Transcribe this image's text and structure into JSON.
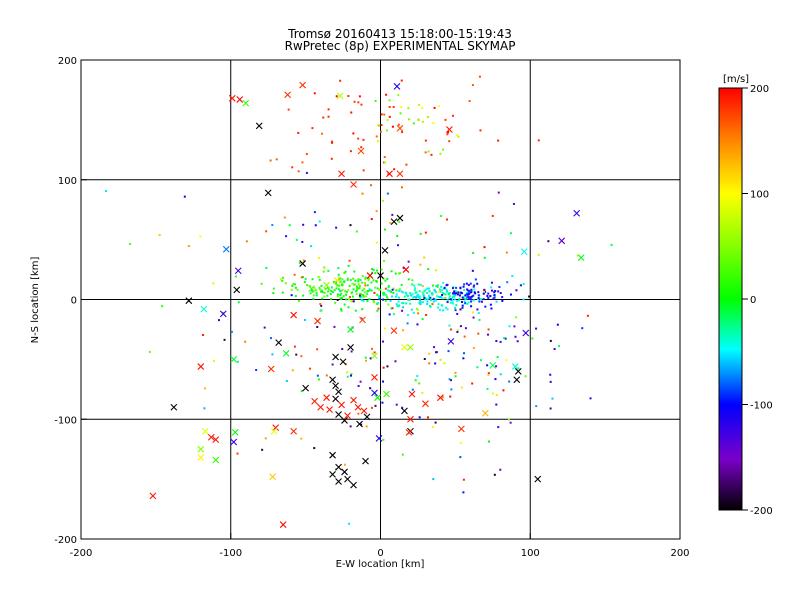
{
  "chart_data": {
    "type": "scatter",
    "title": "Tromsø 20160413 15:18:00-15:19:43",
    "subtitle": "RwPretec (8p) EXPERIMENTAL SKYMAP",
    "xlabel": "E-W location [km]",
    "ylabel": "N-S location [km]",
    "xlim": [
      -200,
      200
    ],
    "ylim": [
      -200,
      200
    ],
    "xticks": [
      "-200",
      "-100",
      "0",
      "100",
      "200"
    ],
    "yticks": [
      "-200",
      "-100",
      "0",
      "100",
      "200"
    ],
    "grid": true,
    "colorbar": {
      "label": "[m/s]",
      "range": [
        -200,
        200
      ],
      "ticks": [
        "-200",
        "-100",
        "0",
        "100",
        "200"
      ],
      "colors": [
        "#000000",
        "#7a00c8",
        "#0000ff",
        "#00ffff",
        "#00ff00",
        "#ffff00",
        "#ff8000",
        "#ff0000"
      ]
    },
    "crosses": [
      {
        "x": -99,
        "y": 168,
        "v": 190
      },
      {
        "x": -81,
        "y": 145,
        "v": -200
      },
      {
        "x": -52,
        "y": 179,
        "v": 180
      },
      {
        "x": -13,
        "y": 124,
        "v": 170
      },
      {
        "x": -26,
        "y": 105,
        "v": 190
      },
      {
        "x": 13,
        "y": 105,
        "v": 180
      },
      {
        "x": 6,
        "y": 105,
        "v": 200
      },
      {
        "x": 13,
        "y": 143,
        "v": 170
      },
      {
        "x": 46,
        "y": 142,
        "v": 190
      },
      {
        "x": 11,
        "y": 178,
        "v": -100
      },
      {
        "x": -94,
        "y": 167,
        "v": 200
      },
      {
        "x": -90,
        "y": 164,
        "v": 40
      },
      {
        "x": -27,
        "y": 170,
        "v": 70
      },
      {
        "x": -62,
        "y": 171,
        "v": 180
      },
      {
        "x": -75,
        "y": 89,
        "v": -200
      },
      {
        "x": -18,
        "y": 96,
        "v": 180
      },
      {
        "x": 13,
        "y": 68,
        "v": -200
      },
      {
        "x": 9,
        "y": 65,
        "v": -200
      },
      {
        "x": 3,
        "y": 41,
        "v": -200
      },
      {
        "x": -52,
        "y": 30,
        "v": -200
      },
      {
        "x": 17,
        "y": 25,
        "v": 200
      },
      {
        "x": -7,
        "y": 20,
        "v": 200
      },
      {
        "x": 0,
        "y": 20,
        "v": -200
      },
      {
        "x": -29,
        "y": 16,
        "v": 100
      },
      {
        "x": -36,
        "y": 12,
        "v": 60
      },
      {
        "x": -46,
        "y": 9,
        "v": 40
      },
      {
        "x": -96,
        "y": 8,
        "v": -200
      },
      {
        "x": -128,
        "y": -1,
        "v": -200
      },
      {
        "x": -103,
        "y": 42,
        "v": -60
      },
      {
        "x": -95,
        "y": 24,
        "v": -120
      },
      {
        "x": 131,
        "y": 72,
        "v": -110
      },
      {
        "x": 121,
        "y": 49,
        "v": -130
      },
      {
        "x": 134,
        "y": 35,
        "v": 20
      },
      {
        "x": 96,
        "y": 40,
        "v": -30
      },
      {
        "x": -118,
        "y": -8,
        "v": -20
      },
      {
        "x": -105,
        "y": -12,
        "v": -110
      },
      {
        "x": -68,
        "y": -36,
        "v": -200
      },
      {
        "x": -58,
        "y": -13,
        "v": 190
      },
      {
        "x": -42,
        "y": -18,
        "v": 180
      },
      {
        "x": -20,
        "y": -25,
        "v": 20
      },
      {
        "x": -12,
        "y": -17,
        "v": 170
      },
      {
        "x": 9,
        "y": -26,
        "v": 180
      },
      {
        "x": 16,
        "y": -40,
        "v": 80
      },
      {
        "x": 47,
        "y": -35,
        "v": -110
      },
      {
        "x": -120,
        "y": -56,
        "v": 190
      },
      {
        "x": -98,
        "y": -50,
        "v": 20
      },
      {
        "x": -73,
        "y": -58,
        "v": 180
      },
      {
        "x": -63,
        "y": -45,
        "v": 20
      },
      {
        "x": -30,
        "y": -48,
        "v": -200
      },
      {
        "x": -25,
        "y": -52,
        "v": -200
      },
      {
        "x": -20,
        "y": -40,
        "v": -200
      },
      {
        "x": -4,
        "y": -47,
        "v": 60
      },
      {
        "x": -4,
        "y": -65,
        "v": 190
      },
      {
        "x": 20,
        "y": -40,
        "v": 60
      },
      {
        "x": 75,
        "y": -55,
        "v": 10
      },
      {
        "x": 90,
        "y": -56,
        "v": -20
      },
      {
        "x": 92,
        "y": -60,
        "v": -200
      },
      {
        "x": 91,
        "y": -67,
        "v": -200
      },
      {
        "x": 97,
        "y": -28,
        "v": -110
      },
      {
        "x": -50,
        "y": -74,
        "v": -200
      },
      {
        "x": -32,
        "y": -67,
        "v": -200
      },
      {
        "x": -30,
        "y": -72,
        "v": -200
      },
      {
        "x": -28,
        "y": -77,
        "v": -200
      },
      {
        "x": -30,
        "y": -83,
        "v": -200
      },
      {
        "x": -36,
        "y": -82,
        "v": 190
      },
      {
        "x": -40,
        "y": -90,
        "v": 190
      },
      {
        "x": -44,
        "y": -85,
        "v": 190
      },
      {
        "x": -34,
        "y": -92,
        "v": 190
      },
      {
        "x": -26,
        "y": -88,
        "v": 190
      },
      {
        "x": -22,
        "y": -97,
        "v": 190
      },
      {
        "x": -18,
        "y": -84,
        "v": 190
      },
      {
        "x": -15,
        "y": -90,
        "v": 190
      },
      {
        "x": -11,
        "y": -93,
        "v": 190
      },
      {
        "x": -9,
        "y": -98,
        "v": -200
      },
      {
        "x": -14,
        "y": -104,
        "v": -200
      },
      {
        "x": -24,
        "y": -101,
        "v": -200
      },
      {
        "x": -28,
        "y": -96,
        "v": -200
      },
      {
        "x": -4,
        "y": -78,
        "v": -100
      },
      {
        "x": 4,
        "y": -79,
        "v": 40
      },
      {
        "x": -2,
        "y": -82,
        "v": 30
      },
      {
        "x": 21,
        "y": -79,
        "v": 190
      },
      {
        "x": 30,
        "y": -87,
        "v": 180
      },
      {
        "x": 16,
        "y": -93,
        "v": -200
      },
      {
        "x": 20,
        "y": -100,
        "v": 190
      },
      {
        "x": 20,
        "y": -110,
        "v": -200
      },
      {
        "x": 19,
        "y": -111,
        "v": 180
      },
      {
        "x": -70,
        "y": -107,
        "v": 190
      },
      {
        "x": -71,
        "y": -110,
        "v": 80
      },
      {
        "x": -117,
        "y": -110,
        "v": 80
      },
      {
        "x": -113,
        "y": -115,
        "v": 190
      },
      {
        "x": -110,
        "y": -117,
        "v": 190
      },
      {
        "x": -97,
        "y": -111,
        "v": 30
      },
      {
        "x": -98,
        "y": -119,
        "v": -110
      },
      {
        "x": -58,
        "y": -110,
        "v": 180
      },
      {
        "x": -138,
        "y": -90,
        "v": -200
      },
      {
        "x": -120,
        "y": -125,
        "v": 60
      },
      {
        "x": -120,
        "y": -132,
        "v": 90
      },
      {
        "x": -110,
        "y": -134,
        "v": 40
      },
      {
        "x": -72,
        "y": -148,
        "v": 110
      },
      {
        "x": -152,
        "y": -164,
        "v": 190
      },
      {
        "x": -65,
        "y": -188,
        "v": 200
      },
      {
        "x": -32,
        "y": -130,
        "v": -200
      },
      {
        "x": -28,
        "y": -140,
        "v": -200
      },
      {
        "x": -32,
        "y": -146,
        "v": -200
      },
      {
        "x": -24,
        "y": -144,
        "v": -200
      },
      {
        "x": -28,
        "y": -152,
        "v": -200
      },
      {
        "x": -22,
        "y": -150,
        "v": -200
      },
      {
        "x": -18,
        "y": -155,
        "v": -200
      },
      {
        "x": -10,
        "y": -135,
        "v": -200
      },
      {
        "x": -1,
        "y": -116,
        "v": -100
      },
      {
        "x": 54,
        "y": -108,
        "v": 180
      },
      {
        "x": 70,
        "y": -95,
        "v": 120
      },
      {
        "x": 105,
        "y": -150,
        "v": -200
      },
      {
        "x": 40,
        "y": -82,
        "v": 190
      }
    ],
    "dot_clusters": [
      {
        "cx": -20,
        "cy": 10,
        "sx": 22,
        "sy": 8,
        "n": 220,
        "vmin": 10,
        "vmax": 60
      },
      {
        "cx": 30,
        "cy": 2,
        "sx": 20,
        "sy": 5,
        "n": 180,
        "vmin": -40,
        "vmax": 0
      },
      {
        "cx": 58,
        "cy": 5,
        "sx": 14,
        "sy": 6,
        "n": 90,
        "vmin": -120,
        "vmax": -70
      },
      {
        "cx": -5,
        "cy": 140,
        "sx": 40,
        "sy": 25,
        "n": 70,
        "vmin": 150,
        "vmax": 200
      },
      {
        "cx": 20,
        "cy": 155,
        "sx": 15,
        "sy": 12,
        "n": 25,
        "vmin": 40,
        "vmax": 90
      },
      {
        "cx": 0,
        "cy": -60,
        "sx": 65,
        "sy": 45,
        "n": 140,
        "vmin": -200,
        "vmax": 200
      },
      {
        "cx": 0,
        "cy": 40,
        "sx": 70,
        "sy": 30,
        "n": 80,
        "vmin": -200,
        "vmax": 200
      },
      {
        "cx": 60,
        "cy": -40,
        "sx": 40,
        "sy": 30,
        "n": 60,
        "vmin": -160,
        "vmax": 200
      }
    ]
  }
}
